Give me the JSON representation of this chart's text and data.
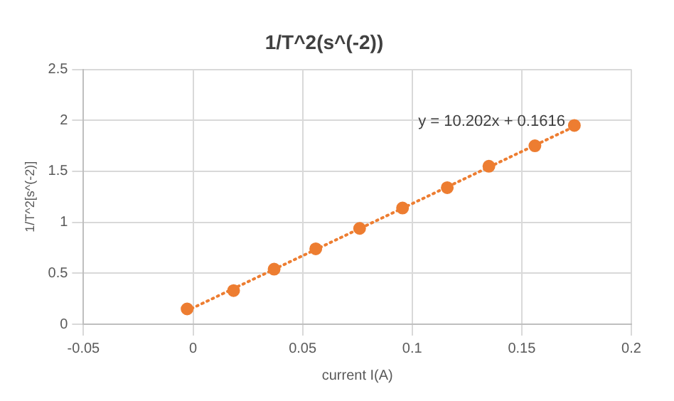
{
  "chart_data": {
    "type": "scatter",
    "title": "1/T^2(s^(-2))",
    "xlabel": "current I(A)",
    "ylabel": "1/T^2[s^(-2)]",
    "x": [
      -0.0027,
      0.0185,
      0.037,
      0.056,
      0.076,
      0.0956,
      0.116,
      0.135,
      0.156,
      0.174
    ],
    "series": [
      {
        "type": "scatter",
        "color": "#ed7d31",
        "marker": "circle",
        "values": [
          0.15,
          0.33,
          0.54,
          0.74,
          0.94,
          1.14,
          1.34,
          1.55,
          1.75,
          1.95
        ]
      },
      {
        "type": "line",
        "color": "#ed7d31",
        "line_style": "dotted",
        "marker": "none",
        "x": [
          -0.003,
          0.175
        ],
        "values": [
          0.13,
          1.95
        ]
      }
    ],
    "xlim": [
      -0.05,
      0.2
    ],
    "xticks": [
      -0.05,
      0,
      0.05,
      0.1,
      0.15,
      0.2
    ],
    "ylim": [
      0,
      2.5
    ],
    "yticks": [
      0,
      0.5,
      1,
      1.5,
      2,
      2.5
    ],
    "grid": true,
    "legend": false,
    "annotations": [
      "y = 10.202x + 0.1616"
    ]
  }
}
